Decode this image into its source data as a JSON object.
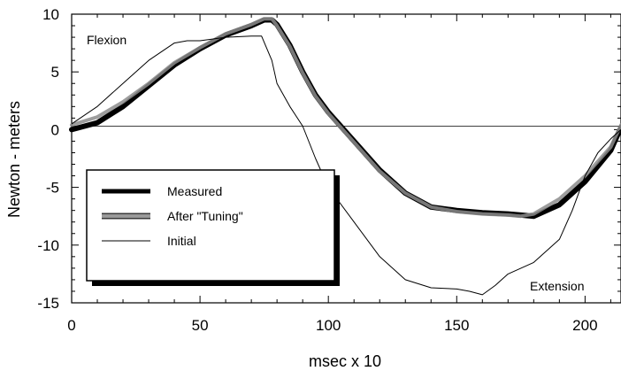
{
  "chart_data": {
    "type": "line",
    "title": "",
    "xlabel": "msec x 10",
    "ylabel": "Newton - meters",
    "xlim": [
      0,
      214
    ],
    "ylim": [
      -15,
      10
    ],
    "xticks": [
      0,
      50,
      100,
      150,
      200
    ],
    "yticks": [
      10,
      5,
      0,
      -5,
      -10,
      -15
    ],
    "grid": false,
    "zero_line": 0.3,
    "legend_position": "lower-left",
    "annotations": [
      {
        "text": "Flexion",
        "x": 15,
        "y": 8
      },
      {
        "text": "Extension",
        "x": 192,
        "y": -13.3
      }
    ],
    "series": [
      {
        "name": "Measured",
        "style": "thick",
        "color": "#000000",
        "x": [
          0,
          10,
          20,
          30,
          40,
          50,
          60,
          70,
          75,
          78,
          80,
          85,
          90,
          95,
          100,
          110,
          120,
          130,
          140,
          150,
          160,
          170,
          175,
          180,
          190,
          200,
          210,
          214
        ],
        "y": [
          0.0,
          0.6,
          2.0,
          3.8,
          5.6,
          7.0,
          8.2,
          9.0,
          9.5,
          9.5,
          9.1,
          7.3,
          5.0,
          3.0,
          1.5,
          -1.0,
          -3.5,
          -5.5,
          -6.7,
          -7.0,
          -7.2,
          -7.3,
          -7.4,
          -7.5,
          -6.5,
          -4.5,
          -1.8,
          0.2
        ]
      },
      {
        "name": "After \"Tuning\"",
        "style": "thick-gray",
        "color": "#8c8c8c",
        "x": [
          0,
          10,
          20,
          30,
          40,
          50,
          60,
          70,
          75,
          78,
          80,
          85,
          90,
          95,
          100,
          110,
          120,
          130,
          140,
          150,
          160,
          170,
          175,
          180,
          190,
          200,
          210,
          214
        ],
        "y": [
          0.4,
          1.1,
          2.4,
          4.0,
          5.8,
          7.1,
          8.3,
          9.1,
          9.6,
          9.6,
          9.0,
          7.2,
          4.9,
          2.9,
          1.4,
          -1.1,
          -3.6,
          -5.5,
          -6.7,
          -7.1,
          -7.3,
          -7.4,
          -7.5,
          -7.3,
          -6.0,
          -4.0,
          -1.5,
          0.4
        ]
      },
      {
        "name": "Initial",
        "style": "thin",
        "color": "#000000",
        "x": [
          0,
          10,
          20,
          30,
          40,
          45,
          50,
          60,
          70,
          74,
          78,
          80,
          85,
          90,
          95,
          100,
          110,
          120,
          130,
          140,
          150,
          155,
          160,
          165,
          170,
          180,
          190,
          195,
          200,
          205,
          210,
          214
        ],
        "y": [
          0.5,
          2.0,
          4.0,
          6.0,
          7.5,
          7.7,
          7.7,
          8.0,
          8.1,
          8.1,
          6.0,
          4.0,
          2.0,
          0.3,
          -2.5,
          -5.0,
          -8.0,
          -11.0,
          -13.0,
          -13.7,
          -13.8,
          -14.0,
          -14.3,
          -13.5,
          -12.5,
          -11.5,
          -9.5,
          -7.0,
          -4.0,
          -2.0,
          -0.8,
          0.0
        ]
      }
    ]
  }
}
